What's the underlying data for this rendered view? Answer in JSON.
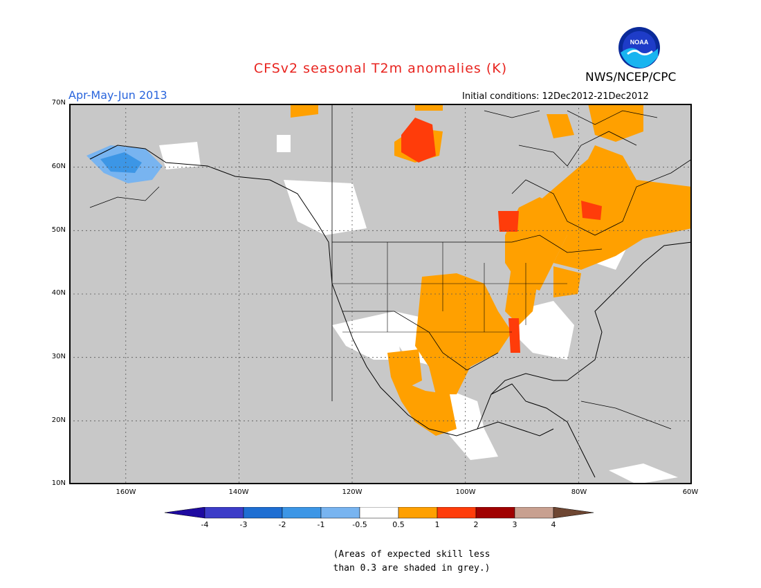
{
  "title": "CFSv2 seasonal T2m anomalies (K)",
  "period": "Apr-May-Jun 2013",
  "initial_conditions": "Initial conditions: 12Dec2012-21Dec2012",
  "agency": "NWS/NCEP/CPC",
  "logo_text": "NOAA",
  "note_line1": "(Areas of expected skill less",
  "note_line2": "than 0.3 are shaded in grey.)",
  "lat_labels": [
    "70N",
    "60N",
    "50N",
    "40N",
    "30N",
    "20N",
    "10N"
  ],
  "lon_labels": [
    "160W",
    "140W",
    "120W",
    "100W",
    "80W",
    "60W"
  ],
  "colorbar": {
    "ticks": [
      "-4",
      "-3",
      "-2",
      "-1",
      "-0.5",
      "0.5",
      "1",
      "2",
      "3",
      "4"
    ],
    "colors": [
      "#1e0aa0",
      "#3c3cc8",
      "#1e6ed2",
      "#3c96e6",
      "#78b4f0",
      "#ffffff",
      "#ffa000",
      "#ff3c0a",
      "#a00000",
      "#c8a090",
      "#6e4632"
    ]
  },
  "colors": {
    "title": "#e8231e",
    "period": "#2864dc",
    "grey_mask": "#c8c8c8",
    "land_border": "#000000"
  }
}
